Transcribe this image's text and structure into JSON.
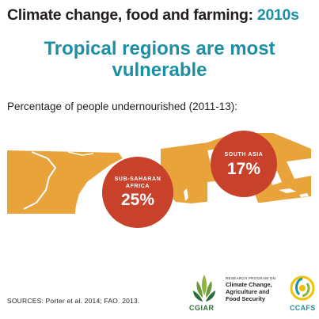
{
  "title": {
    "main": "Climate change, food and farming: ",
    "decade": "2010s"
  },
  "subtitle": {
    "line1": "Tropical regions are most",
    "line2": "vulnerable"
  },
  "caption": "Percentage of people undernourished (2011-13):",
  "regions": [
    {
      "line1": "SUB-SAHARAN",
      "line2": "AFRICA",
      "value": "25%"
    },
    {
      "line1": "SOUTH ASIA",
      "value": "17%"
    }
  ],
  "sources": "SOURCES: Porter et al. 2014; FAO. 2013.",
  "logos": {
    "cgiar": "CGIAR",
    "program_small": "RESEARCH PROGRAM ON",
    "program_lines": [
      "Climate Change,",
      "Agriculture and",
      "Food Security"
    ],
    "ccafs": "CCAFS"
  },
  "colors": {
    "map": "#e8a33a",
    "bubble": "#c8412b",
    "accent": "#1d8fa5",
    "text": "#231f20"
  }
}
